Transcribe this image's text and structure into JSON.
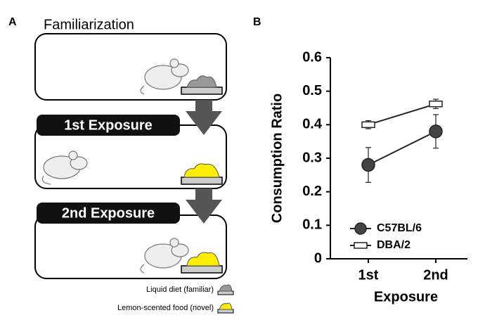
{
  "panel_a": {
    "label": "A",
    "title": "Familiarization",
    "steps": [
      "1st Exposure",
      "2nd Exposure"
    ],
    "legend": [
      "Liquid diet (familiar)",
      "Lemon-scented food (novel)"
    ]
  },
  "chart_data": {
    "type": "line",
    "panel_label": "B",
    "x_label": "Exposure",
    "y_label": "Consumption Ratio",
    "categories": [
      "1st",
      "2nd"
    ],
    "series": [
      {
        "name": "C57BL/6",
        "color": "#444444",
        "marker": "circle",
        "values": [
          0.28,
          0.38
        ],
        "errors": [
          0.052,
          0.05
        ]
      },
      {
        "name": "DBA/2",
        "color": "#ffffff",
        "marker": "square",
        "values": [
          0.4,
          0.462
        ],
        "errors": [
          0.012,
          0.014
        ]
      }
    ],
    "ylim": [
      0,
      0.6
    ],
    "yticks": [
      0,
      0.1,
      0.2,
      0.3,
      0.4,
      0.5,
      0.6
    ],
    "grid": false,
    "legend_position": "lower left"
  }
}
